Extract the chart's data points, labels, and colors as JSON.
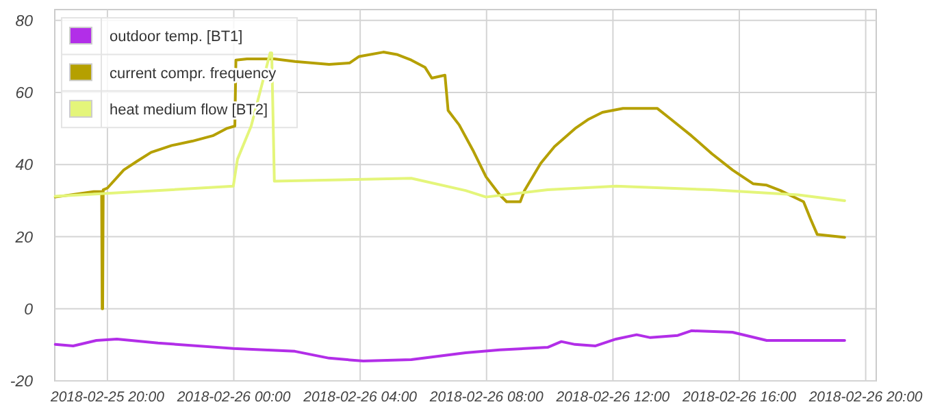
{
  "chart_data": {
    "type": "line",
    "legend": "top left",
    "grid": true,
    "marker": "none",
    "line_style": "solid",
    "xlim": [
      "2018-02-25T18:20",
      "2018-02-26T20:20"
    ],
    "xticks": [
      {
        "value": "2018-02-25T20:00",
        "label": "2018-02-25 20:00"
      },
      {
        "value": "2018-02-26T00:00",
        "label": "2018-02-26 00:00"
      },
      {
        "value": "2018-02-26T04:00",
        "label": "2018-02-26 04:00"
      },
      {
        "value": "2018-02-26T08:00",
        "label": "2018-02-26 08:00"
      },
      {
        "value": "2018-02-26T12:00",
        "label": "2018-02-26 12:00"
      },
      {
        "value": "2018-02-26T16:00",
        "label": "2018-02-26 16:00"
      },
      {
        "value": "2018-02-26T20:00",
        "label": "2018-02-26 20:00"
      }
    ],
    "ylim": [
      -20,
      83
    ],
    "yticks": [
      -20,
      0,
      20,
      40,
      60,
      80
    ],
    "series": [
      {
        "name": "outdoor temp. [BT1]",
        "color": "#b22ee8",
        "x": [
          "2018-02-25T18:21",
          "2018-02-25T18:55",
          "2018-02-25T19:39",
          "2018-02-25T20:18",
          "2018-02-25T21:36",
          "2018-02-25T23:59",
          "2018-02-26T01:56",
          "2018-02-26T03:01",
          "2018-02-26T04:06",
          "2018-02-26T05:37",
          "2018-02-26T07:20",
          "2018-02-26T08:25",
          "2018-02-26T09:56",
          "2018-02-26T10:22",
          "2018-02-26T10:48",
          "2018-02-26T11:27",
          "2018-02-26T12:06",
          "2018-02-26T12:45",
          "2018-02-26T13:11",
          "2018-02-26T14:03",
          "2018-02-26T14:29",
          "2018-02-26T15:47",
          "2018-02-26T16:52",
          "2018-02-26T19:20"
        ],
        "values": [
          -9.9,
          -10.3,
          -8.8,
          -8.4,
          -9.5,
          -11,
          -11.8,
          -13.7,
          -14.5,
          -14.1,
          -12.2,
          -11.4,
          -10.7,
          -9.1,
          -9.9,
          -10.3,
          -8.4,
          -7.2,
          -8,
          -7.4,
          -6.1,
          -6.5,
          -8.8,
          -8.8
        ]
      },
      {
        "name": "current compr. frequency",
        "color": "#b5a000",
        "x": [
          "2018-02-25T18:21",
          "2018-02-25T19:34",
          "2018-02-25T19:49",
          "2018-02-25T19:50",
          "2018-02-25T19:51",
          "2018-02-25T19:52",
          "2018-02-25T20:00",
          "2018-02-25T20:31",
          "2018-02-25T20:57",
          "2018-02-25T21:23",
          "2018-02-25T22:02",
          "2018-02-25T22:41",
          "2018-02-25T23:20",
          "2018-02-25T23:46",
          "2018-02-26T00:02",
          "2018-02-26T00:04",
          "2018-02-26T00:25",
          "2018-02-26T01:17",
          "2018-02-26T01:56",
          "2018-02-26T03:01",
          "2018-02-26T03:40",
          "2018-02-26T03:58",
          "2018-02-26T04:44",
          "2018-02-26T05:11",
          "2018-02-26T05:37",
          "2018-02-26T06:03",
          "2018-02-26T06:16",
          "2018-02-26T06:41",
          "2018-02-26T06:47",
          "2018-02-26T07:08",
          "2018-02-26T07:34",
          "2018-02-26T07:59",
          "2018-02-26T08:25",
          "2018-02-26T08:38",
          "2018-02-26T09:04",
          "2018-02-26T09:12",
          "2018-02-26T09:43",
          "2018-02-26T10:09",
          "2018-02-26T10:48",
          "2018-02-26T11:14",
          "2018-02-26T11:40",
          "2018-02-26T12:19",
          "2018-02-26T13:24",
          "2018-02-26T13:50",
          "2018-02-26T14:29",
          "2018-02-26T15:08",
          "2018-02-26T15:47",
          "2018-02-26T16:26",
          "2018-02-26T16:52",
          "2018-02-26T17:18",
          "2018-02-26T18:02",
          "2018-02-26T18:15",
          "2018-02-26T18:28",
          "2018-02-26T19:20"
        ],
        "values": [
          31,
          32.5,
          32.5,
          0,
          0,
          33,
          33.5,
          38.5,
          41,
          43.4,
          45.3,
          46.5,
          48,
          50,
          50.7,
          69,
          69.3,
          69.3,
          68.6,
          67.8,
          68.2,
          70,
          71.2,
          70.5,
          69,
          67,
          64,
          64.8,
          55,
          51,
          44,
          36.6,
          31.6,
          29.7,
          29.7,
          32.8,
          40.4,
          45,
          50,
          52.6,
          54.5,
          55.6,
          55.6,
          52.6,
          48,
          43,
          38.5,
          34.7,
          34.3,
          32.8,
          29.7,
          25,
          20.6,
          19.8
        ]
      },
      {
        "name": "heat medium flow [BT2]",
        "color": "#e4f57a",
        "x": [
          "2018-02-25T18:21",
          "2018-02-25T23:59",
          "2018-02-26T00:07",
          "2018-02-26T00:33",
          "2018-02-26T01:09",
          "2018-02-26T01:12",
          "2018-02-26T01:17",
          "2018-02-26T05:37",
          "2018-02-26T07:20",
          "2018-02-26T07:59",
          "2018-02-26T09:56",
          "2018-02-26T12:06",
          "2018-02-26T15:08",
          "2018-02-26T17:52",
          "2018-02-26T19:20"
        ],
        "values": [
          31.2,
          34,
          41.5,
          50.7,
          71,
          71,
          35.4,
          36.2,
          32.8,
          31,
          33,
          34,
          33,
          31.6,
          30
        ]
      }
    ]
  }
}
